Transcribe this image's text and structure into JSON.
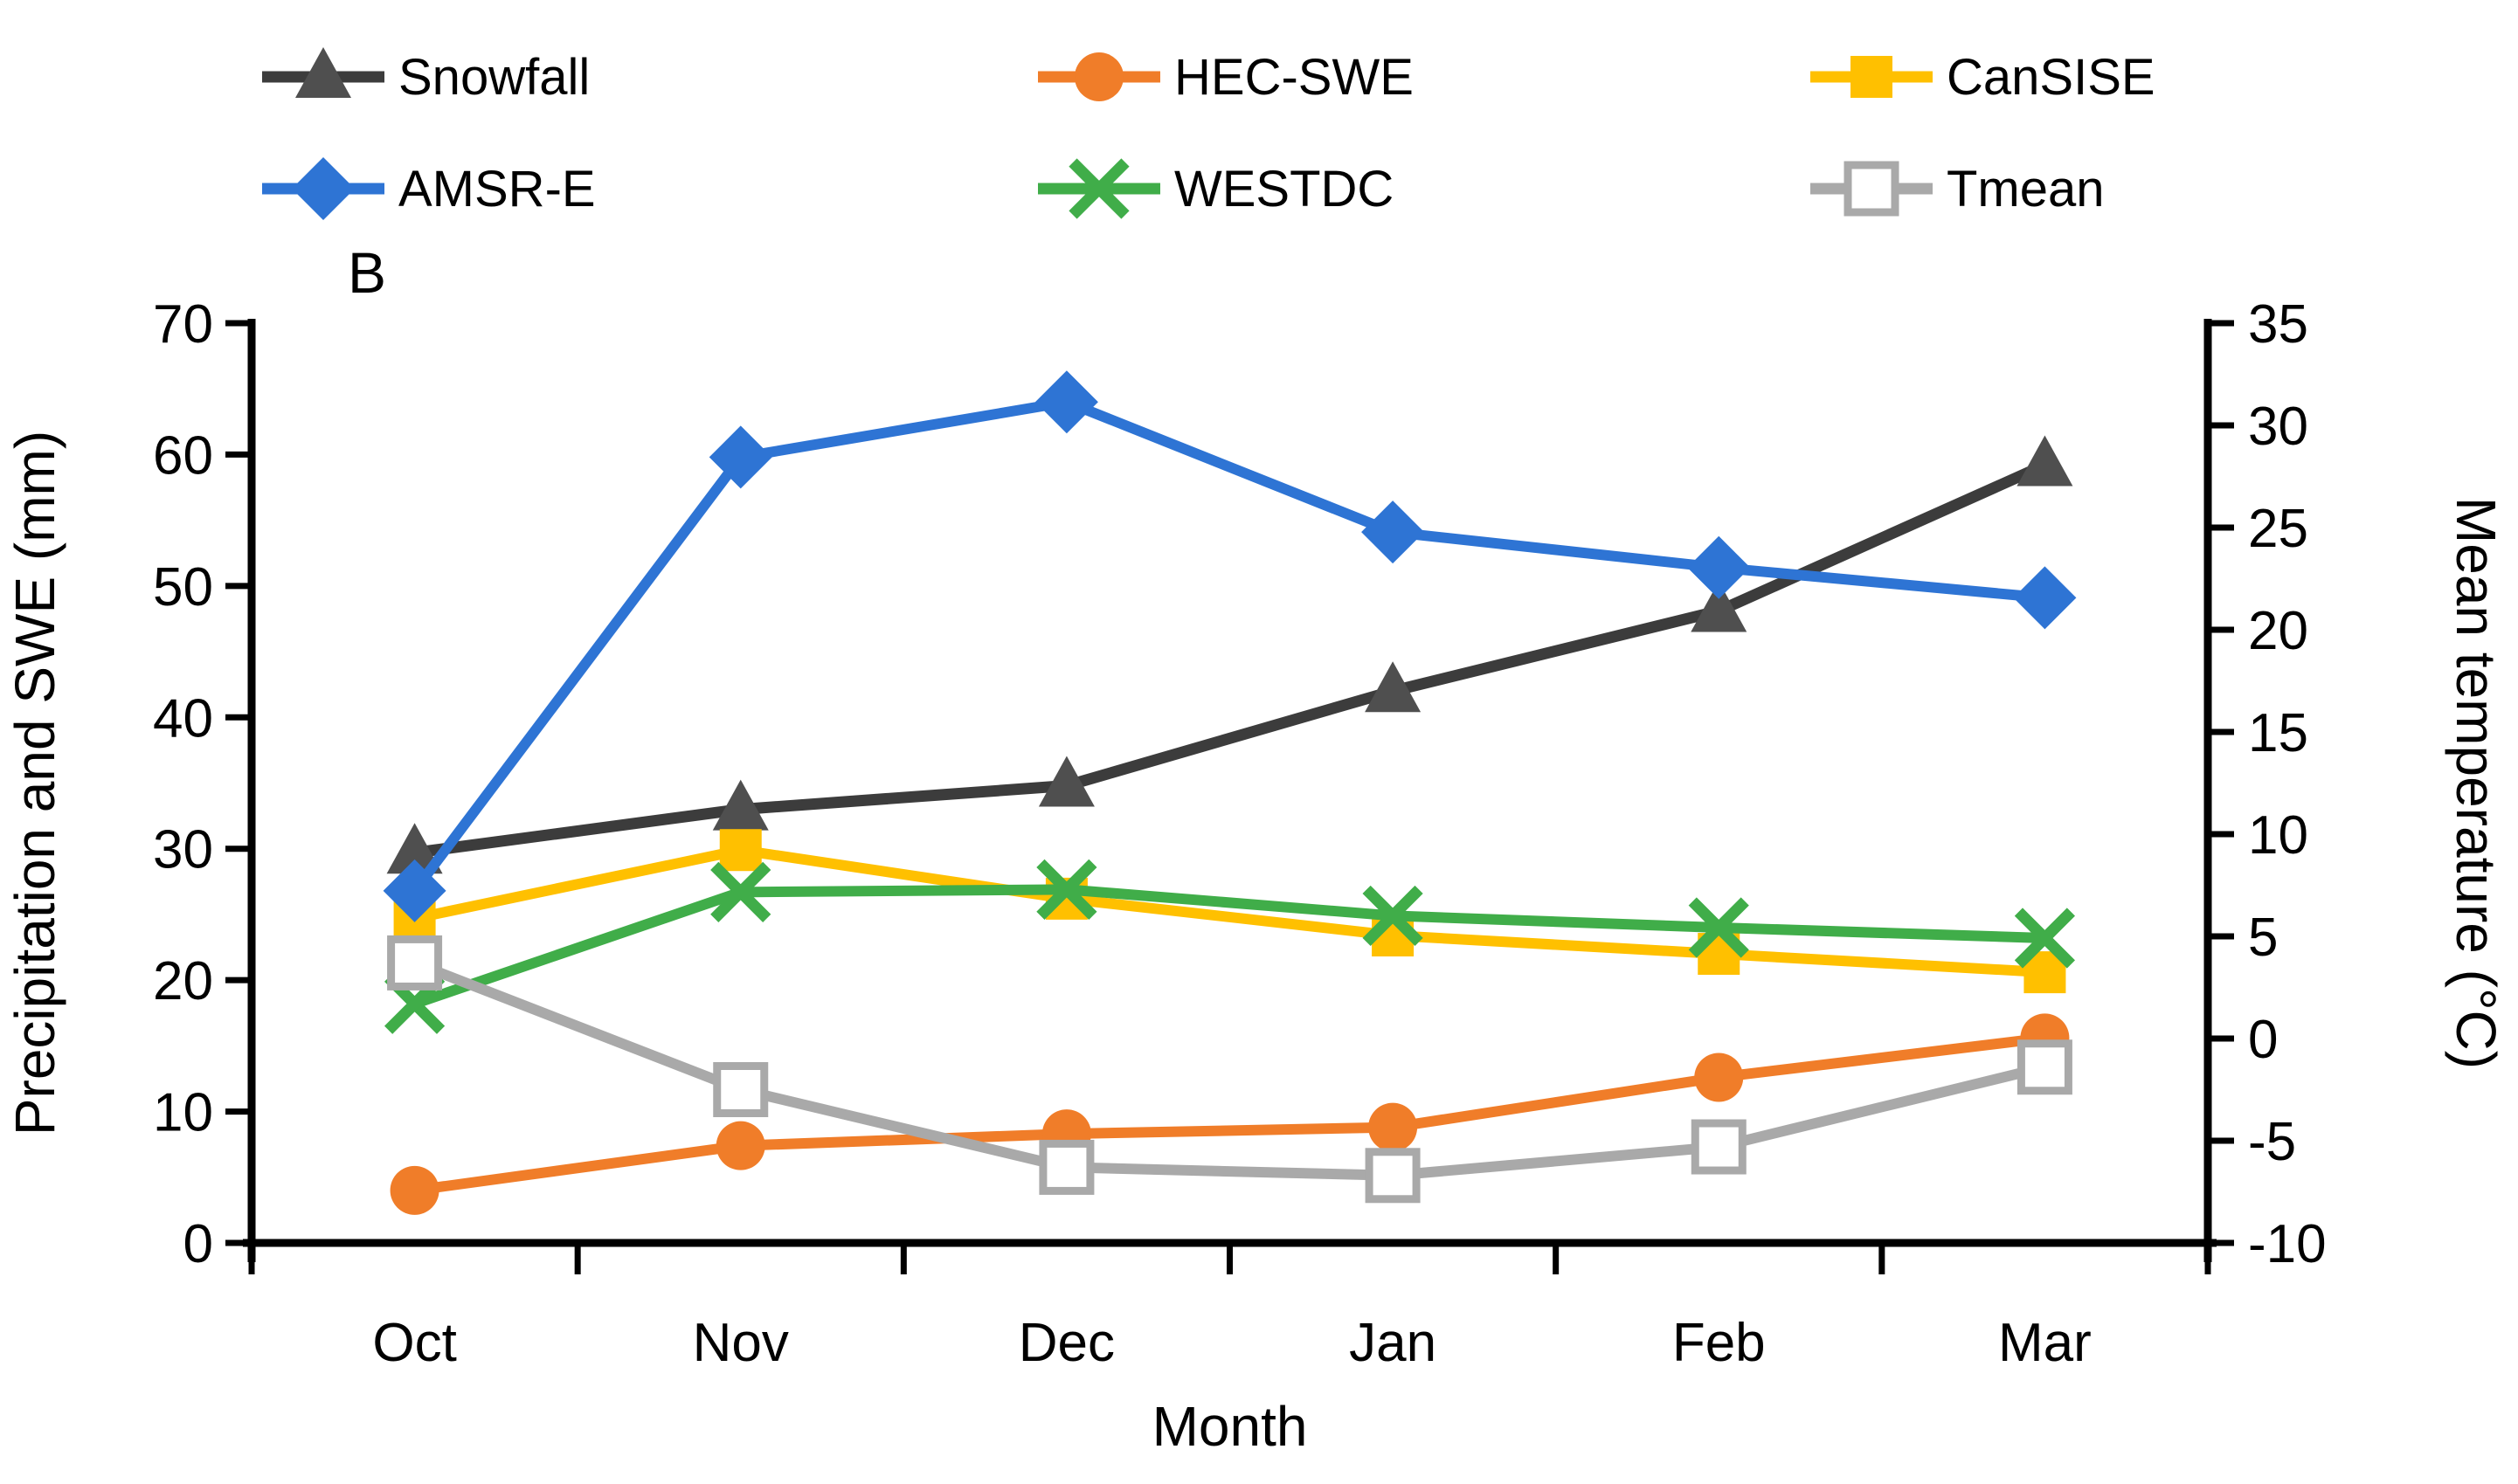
{
  "figure": {
    "panel_label": "B",
    "background": "#ffffff",
    "text_color": "#000000"
  },
  "chart_data": {
    "type": "line",
    "categories": [
      "Oct",
      "Nov",
      "Dec",
      "Jan",
      "Feb",
      "Mar"
    ],
    "series": [
      {
        "name": "Snowfall",
        "axis": "left",
        "marker": "triangle",
        "color": "#3C3C3C",
        "marker_color": "#4F4F4F",
        "values": [
          29.7,
          33.0,
          34.8,
          42.0,
          48.1,
          59.2
        ]
      },
      {
        "name": "HEC-SWE",
        "axis": "left",
        "marker": "circle",
        "color": "#F07D29",
        "marker_color": "#F07D29",
        "values": [
          4.0,
          7.4,
          8.3,
          8.8,
          12.6,
          15.6
        ]
      },
      {
        "name": "CanSISE",
        "axis": "left",
        "marker": "square",
        "color": "#FFC000",
        "marker_color": "#FFC000",
        "values": [
          24.7,
          29.9,
          26.2,
          23.4,
          22.0,
          20.6
        ]
      },
      {
        "name": "AMSR-E",
        "axis": "left",
        "marker": "diamond",
        "color": "#2E74D4",
        "marker_color": "#2E74D4",
        "values": [
          26.8,
          59.8,
          64.0,
          54.1,
          51.4,
          49.1
        ]
      },
      {
        "name": "WESTDC",
        "axis": "left",
        "marker": "x",
        "color": "#40AD49",
        "marker_color": "#40AD49",
        "values": [
          18.2,
          26.7,
          26.9,
          24.9,
          24.0,
          23.2
        ]
      },
      {
        "name": "Tmean",
        "axis": "right",
        "marker": "open-square",
        "color": "#A9A9A9",
        "marker_color": "#ffffff",
        "values": [
          3.7,
          -2.5,
          -6.3,
          -6.7,
          -5.3,
          -1.4
        ]
      }
    ],
    "title": "",
    "xlabel": "Month",
    "ylabel_left": "Precipitation and SWE (mm)",
    "ylabel_right": "Mean temperature (°C)",
    "ylim_left": [
      0,
      70
    ],
    "yticks_left": [
      0,
      10,
      20,
      30,
      40,
      50,
      60,
      70
    ],
    "ylim_right": [
      -10,
      35
    ],
    "yticks_right": [
      -10,
      -5,
      0,
      5,
      10,
      15,
      20,
      25,
      30,
      35
    ],
    "grid": false,
    "legend_position": "top",
    "legend_rows": [
      [
        "Snowfall",
        "HEC-SWE",
        "CanSISE"
      ],
      [
        "AMSR-E",
        "WESTDC",
        "Tmean"
      ]
    ]
  }
}
